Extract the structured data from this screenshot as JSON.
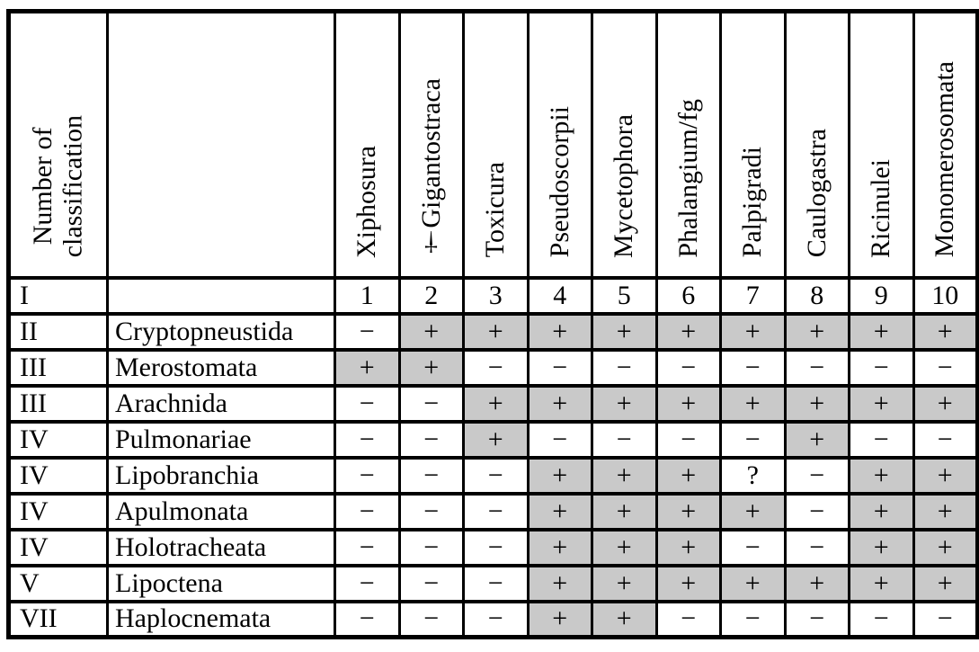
{
  "colors": {
    "background": "#ffffff",
    "border": "#000000",
    "text": "#000000",
    "shaded_cell": "#c9c9c9"
  },
  "table": {
    "corner_header": {
      "line1": "Number of",
      "line2": "classification"
    },
    "column_headers": [
      "Xiphosura",
      "†Gigantostraca",
      "Toxicura",
      "Pseudoscorpii",
      "Mycetophora",
      "Phalangium/fg",
      "Palpigradi",
      "Caulogastra",
      "Ricinulei",
      "Monomerosomata"
    ],
    "rows": [
      {
        "number": "I",
        "name": "",
        "cells": [
          {
            "v": "1",
            "shaded": false
          },
          {
            "v": "2",
            "shaded": false
          },
          {
            "v": "3",
            "shaded": false
          },
          {
            "v": "4",
            "shaded": false
          },
          {
            "v": "5",
            "shaded": false
          },
          {
            "v": "6",
            "shaded": false
          },
          {
            "v": "7",
            "shaded": false
          },
          {
            "v": "8",
            "shaded": false
          },
          {
            "v": "9",
            "shaded": false
          },
          {
            "v": "10",
            "shaded": false
          }
        ]
      },
      {
        "number": "II",
        "name": "Cryptopneustida",
        "cells": [
          {
            "v": "−",
            "shaded": false
          },
          {
            "v": "+",
            "shaded": true
          },
          {
            "v": "+",
            "shaded": true
          },
          {
            "v": "+",
            "shaded": true
          },
          {
            "v": "+",
            "shaded": true
          },
          {
            "v": "+",
            "shaded": true
          },
          {
            "v": "+",
            "shaded": true
          },
          {
            "v": "+",
            "shaded": true
          },
          {
            "v": "+",
            "shaded": true
          },
          {
            "v": "+",
            "shaded": true
          }
        ]
      },
      {
        "number": "III",
        "name": "Merostomata",
        "cells": [
          {
            "v": "+",
            "shaded": true
          },
          {
            "v": "+",
            "shaded": true
          },
          {
            "v": "−",
            "shaded": false
          },
          {
            "v": "−",
            "shaded": false
          },
          {
            "v": "−",
            "shaded": false
          },
          {
            "v": "−",
            "shaded": false
          },
          {
            "v": "−",
            "shaded": false
          },
          {
            "v": "−",
            "shaded": false
          },
          {
            "v": "−",
            "shaded": false
          },
          {
            "v": "−",
            "shaded": false
          }
        ]
      },
      {
        "number": "III",
        "name": "Arachnida",
        "cells": [
          {
            "v": "−",
            "shaded": false
          },
          {
            "v": "−",
            "shaded": false
          },
          {
            "v": "+",
            "shaded": true
          },
          {
            "v": "+",
            "shaded": true
          },
          {
            "v": "+",
            "shaded": true
          },
          {
            "v": "+",
            "shaded": true
          },
          {
            "v": "+",
            "shaded": true
          },
          {
            "v": "+",
            "shaded": true
          },
          {
            "v": "+",
            "shaded": true
          },
          {
            "v": "+",
            "shaded": true
          }
        ]
      },
      {
        "number": "IV",
        "name": "Pulmonariae",
        "cells": [
          {
            "v": "−",
            "shaded": false
          },
          {
            "v": "−",
            "shaded": false
          },
          {
            "v": "+",
            "shaded": true
          },
          {
            "v": "−",
            "shaded": false
          },
          {
            "v": "−",
            "shaded": false
          },
          {
            "v": "−",
            "shaded": false
          },
          {
            "v": "−",
            "shaded": false
          },
          {
            "v": "+",
            "shaded": true
          },
          {
            "v": "−",
            "shaded": false
          },
          {
            "v": "−",
            "shaded": false
          }
        ]
      },
      {
        "number": "IV",
        "name": "Lipobranchia",
        "cells": [
          {
            "v": "−",
            "shaded": false
          },
          {
            "v": "−",
            "shaded": false
          },
          {
            "v": "−",
            "shaded": false
          },
          {
            "v": "+",
            "shaded": true
          },
          {
            "v": "+",
            "shaded": true
          },
          {
            "v": "+",
            "shaded": true
          },
          {
            "v": "?",
            "shaded": false
          },
          {
            "v": "−",
            "shaded": false
          },
          {
            "v": "+",
            "shaded": true
          },
          {
            "v": "+",
            "shaded": true
          }
        ]
      },
      {
        "number": "IV",
        "name": "Apulmonata",
        "cells": [
          {
            "v": "−",
            "shaded": false
          },
          {
            "v": "−",
            "shaded": false
          },
          {
            "v": "−",
            "shaded": false
          },
          {
            "v": "+",
            "shaded": true
          },
          {
            "v": "+",
            "shaded": true
          },
          {
            "v": "+",
            "shaded": true
          },
          {
            "v": "+",
            "shaded": true
          },
          {
            "v": "−",
            "shaded": false
          },
          {
            "v": "+",
            "shaded": true
          },
          {
            "v": "+",
            "shaded": true
          }
        ]
      },
      {
        "number": "IV",
        "name": "Holotracheata",
        "cells": [
          {
            "v": "−",
            "shaded": false
          },
          {
            "v": "−",
            "shaded": false
          },
          {
            "v": "−",
            "shaded": false
          },
          {
            "v": "+",
            "shaded": true
          },
          {
            "v": "+",
            "shaded": true
          },
          {
            "v": "+",
            "shaded": true
          },
          {
            "v": "−",
            "shaded": false
          },
          {
            "v": "−",
            "shaded": false
          },
          {
            "v": "+",
            "shaded": true
          },
          {
            "v": "+",
            "shaded": true
          }
        ]
      },
      {
        "number": "V",
        "name": "Lipoctena",
        "cells": [
          {
            "v": "−",
            "shaded": false
          },
          {
            "v": "−",
            "shaded": false
          },
          {
            "v": "−",
            "shaded": false
          },
          {
            "v": "+",
            "shaded": true
          },
          {
            "v": "+",
            "shaded": true
          },
          {
            "v": "+",
            "shaded": true
          },
          {
            "v": "+",
            "shaded": true
          },
          {
            "v": "+",
            "shaded": true
          },
          {
            "v": "+",
            "shaded": true
          },
          {
            "v": "+",
            "shaded": true
          }
        ]
      },
      {
        "number": "VII",
        "name": "Haplocnemata",
        "cells": [
          {
            "v": "−",
            "shaded": false
          },
          {
            "v": "−",
            "shaded": false
          },
          {
            "v": "−",
            "shaded": false
          },
          {
            "v": "+",
            "shaded": true
          },
          {
            "v": "+",
            "shaded": true
          },
          {
            "v": "−",
            "shaded": false
          },
          {
            "v": "−",
            "shaded": false
          },
          {
            "v": "−",
            "shaded": false
          },
          {
            "v": "−",
            "shaded": false
          },
          {
            "v": "−",
            "shaded": false
          }
        ]
      }
    ]
  }
}
